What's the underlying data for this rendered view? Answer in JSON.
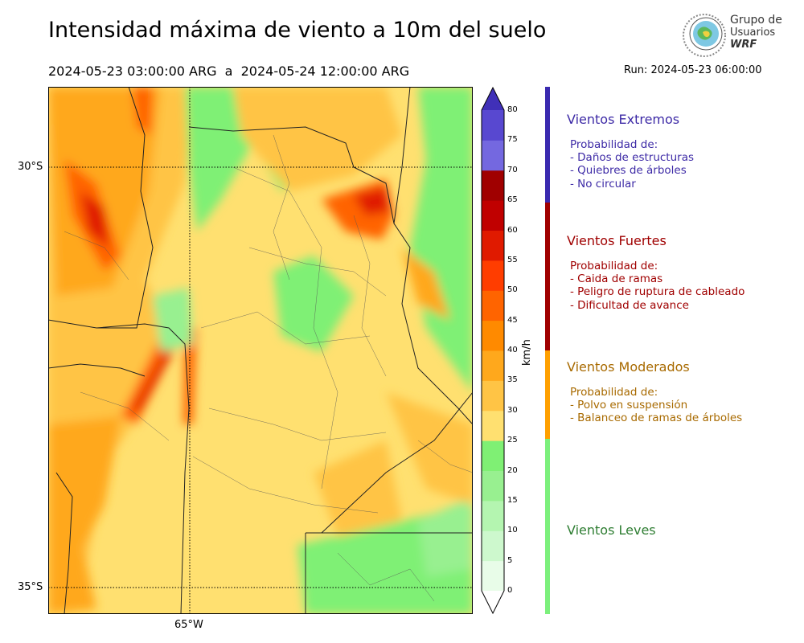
{
  "title": "Intensidad máxima de viento a 10m del suelo",
  "period": "2024-05-23 03:00:00 ARG  a  2024-05-24 12:00:00 ARG",
  "run": "Run: 2024-05-23 06:00:00",
  "logo": {
    "line1": "Grupo de",
    "line2": "Usuarios",
    "line3": "WRF"
  },
  "map": {
    "lat_labels": [
      "30°S",
      "35°S"
    ],
    "lon_labels": [
      "65°W"
    ]
  },
  "colorbar": {
    "units": "km/h",
    "ticks": [
      "0",
      "5",
      "10",
      "15",
      "20",
      "25",
      "30",
      "35",
      "40",
      "45",
      "50",
      "55",
      "60",
      "65",
      "70",
      "75",
      "80"
    ],
    "colors": [
      "#e8fce8",
      "#cdf8cd",
      "#b4f5b0",
      "#98f090",
      "#7ff074",
      "#ffe070",
      "#ffc445",
      "#ffa81c",
      "#ff8a00",
      "#ff6400",
      "#ff3d00",
      "#e01a00",
      "#c00000",
      "#a00000",
      "#7468e0",
      "#5848d0",
      "#4030b8"
    ]
  },
  "categories": [
    {
      "title": "Vientos Extremos",
      "color": "#3d2aa6",
      "bar": "#3a2ab0",
      "items": [
        "Probabilidad de:",
        "- Daños de estructuras",
        "- Quiebres de árboles",
        "- No circular"
      ]
    },
    {
      "title": "Vientos Fuertes",
      "color": "#a00000",
      "bar": "#a00000",
      "items": [
        "Probabilidad de:",
        "- Caida de ramas",
        "- Peligro de ruptura de cableado",
        "- Dificultad de avance"
      ]
    },
    {
      "title": "Vientos Moderados",
      "color": "#a86a00",
      "bar": "#ffa000",
      "items": [
        "Probabilidad de:",
        "- Polvo en suspensión",
        "- Balanceo de ramas de árboles"
      ]
    },
    {
      "title": "Vientos Leves",
      "color": "#2e7d32",
      "bar": "#7cf07c",
      "items": []
    }
  ]
}
